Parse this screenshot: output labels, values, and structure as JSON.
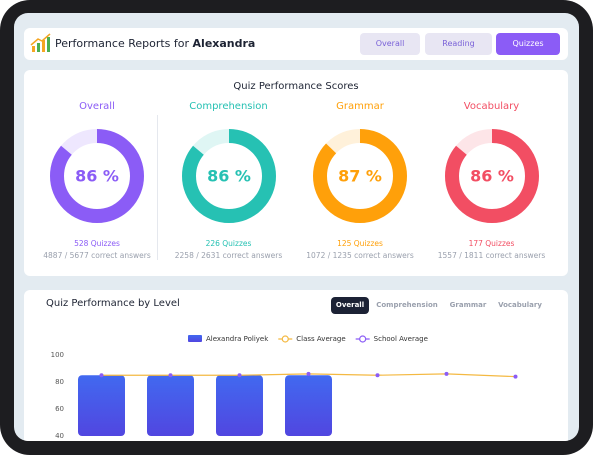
{
  "header": {
    "title": "Performance Reports for",
    "name": "Alexandra",
    "tabs": [
      "Overall",
      "Reading",
      "Quizzes"
    ],
    "active_tab": 2
  },
  "scores": {
    "title": "Quiz Performance Scores",
    "items": [
      {
        "label": "Overall",
        "value": 86,
        "value_label": "86 %",
        "quizzes": "528 Quizzes",
        "correct": "4887 / 5677 correct answers",
        "color": "#8b5cf6"
      },
      {
        "label": "Comprehension",
        "value": 86,
        "value_label": "86 %",
        "quizzes": "226 Quizzes",
        "correct": "2258 / 2631 correct answers",
        "color": "#26c1b3"
      },
      {
        "label": "Grammar",
        "value": 87,
        "value_label": "87 %",
        "quizzes": "125 Quizzes",
        "correct": "1072 / 1235 correct answers",
        "color": "#ffa00a"
      },
      {
        "label": "Vocabulary",
        "value": 86,
        "value_label": "86 %",
        "quizzes": "177 Quizzes",
        "correct": "1557 / 1811 correct answers",
        "color": "#f24e63"
      }
    ]
  },
  "level": {
    "title": "Quiz Performance by Level",
    "tabs": [
      "Overall",
      "Comprehension",
      "Grammar",
      "Vocabulary"
    ],
    "active_tab": 0,
    "chart_data": {
      "type": "bar",
      "categories": [
        null,
        null,
        null,
        null,
        null,
        null,
        null
      ],
      "series": [
        {
          "name": "Alexandra Poliyek",
          "type": "bar",
          "color": "#4169f0",
          "values": [
            85,
            85,
            85,
            85,
            null,
            null,
            null
          ]
        },
        {
          "name": "Class Average",
          "type": "line",
          "color": "#f4b942",
          "values": [
            85,
            85,
            85,
            86,
            85,
            86,
            84
          ]
        },
        {
          "name": "School Average",
          "type": "scatter",
          "color": "#8b5cf6",
          "values": [
            85,
            85,
            85,
            86,
            85,
            86,
            84
          ]
        }
      ],
      "ylim": [
        40,
        100
      ],
      "yticks": [
        40,
        60,
        80,
        100
      ],
      "grid": false
    }
  }
}
